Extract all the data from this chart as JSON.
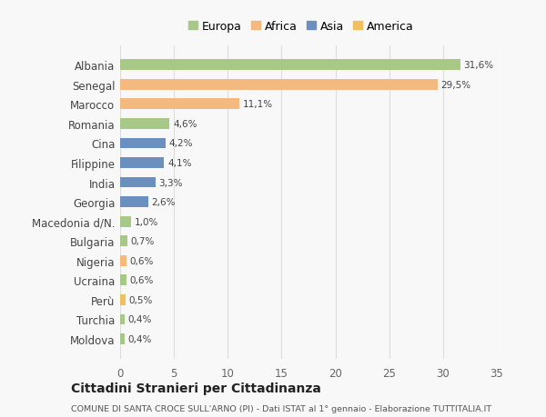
{
  "countries": [
    "Albania",
    "Senegal",
    "Marocco",
    "Romania",
    "Cina",
    "Filippine",
    "India",
    "Georgia",
    "Macedonia d/N.",
    "Bulgaria",
    "Nigeria",
    "Ucraina",
    "Perù",
    "Turchia",
    "Moldova"
  ],
  "values": [
    31.6,
    29.5,
    11.1,
    4.6,
    4.2,
    4.1,
    3.3,
    2.6,
    1.0,
    0.7,
    0.6,
    0.6,
    0.5,
    0.4,
    0.4
  ],
  "labels": [
    "31,6%",
    "29,5%",
    "11,1%",
    "4,6%",
    "4,2%",
    "4,1%",
    "3,3%",
    "2,6%",
    "1,0%",
    "0,7%",
    "0,6%",
    "0,6%",
    "0,5%",
    "0,4%",
    "0,4%"
  ],
  "colors": [
    "#a8c888",
    "#f4b97f",
    "#f4b97f",
    "#a8c888",
    "#6b8fbf",
    "#6b8fbf",
    "#6b8fbf",
    "#6b8fbf",
    "#a8c888",
    "#a8c888",
    "#f4b97f",
    "#a8c888",
    "#f0c060",
    "#a8c888",
    "#a8c888"
  ],
  "legend": {
    "Europa": "#a8c888",
    "Africa": "#f4b97f",
    "Asia": "#6b8fbf",
    "America": "#f0c060"
  },
  "xlim": [
    0,
    35
  ],
  "xticks": [
    0,
    5,
    10,
    15,
    20,
    25,
    30,
    35
  ],
  "title": "Cittadini Stranieri per Cittadinanza",
  "subtitle": "COMUNE DI SANTA CROCE SULL'ARNO (PI) - Dati ISTAT al 1° gennaio - Elaborazione TUTTITALIA.IT",
  "background_color": "#f8f8f8",
  "grid_color": "#dddddd",
  "bar_height": 0.55
}
